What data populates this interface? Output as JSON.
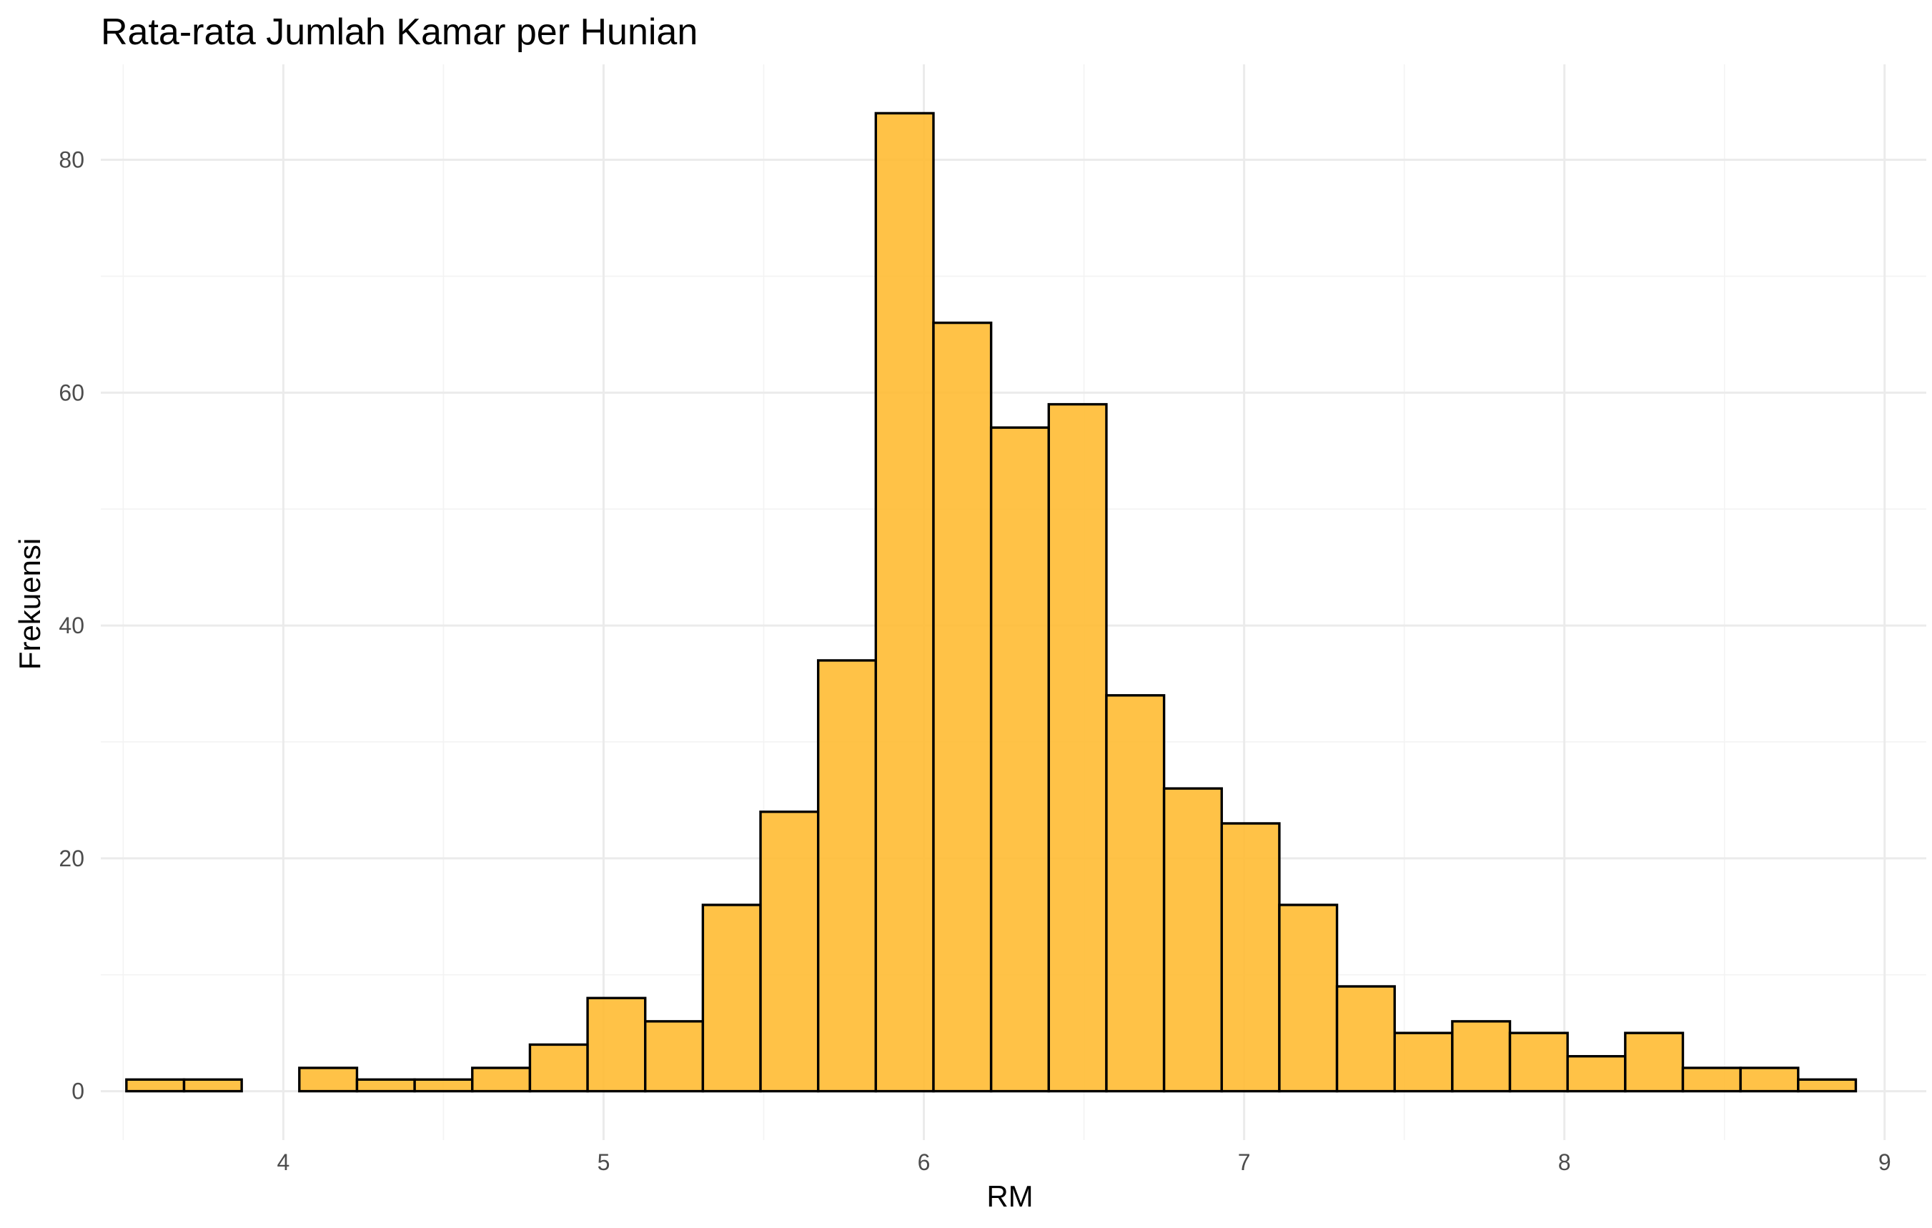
{
  "chart_data": {
    "type": "bar",
    "title": "Rata-rata Jumlah Kamar per Hunian",
    "xlabel": "RM",
    "ylabel": "Frekuensi",
    "bar_fill": "#FFBB33",
    "bar_stroke": "#000000",
    "grid": true,
    "xlim": [
      3.43,
      9.13
    ],
    "ylim": [
      -4.2,
      88.2
    ],
    "x_ticks": [
      4,
      5,
      6,
      7,
      8,
      9
    ],
    "y_ticks": [
      0,
      20,
      40,
      60,
      80
    ],
    "bin_width": 0.18,
    "bin_starts": [
      3.51,
      3.69,
      3.87,
      4.05,
      4.23,
      4.41,
      4.59,
      4.77,
      4.95,
      5.13,
      5.31,
      5.49,
      5.67,
      5.85,
      6.03,
      6.21,
      6.39,
      6.57,
      6.75,
      6.93,
      7.11,
      7.29,
      7.47,
      7.65,
      7.83,
      8.01,
      8.19,
      8.37,
      8.55,
      8.73
    ],
    "values": [
      1,
      1,
      0,
      2,
      1,
      1,
      2,
      4,
      8,
      6,
      16,
      24,
      37,
      84,
      66,
      57,
      59,
      34,
      26,
      23,
      16,
      9,
      5,
      6,
      5,
      3,
      5,
      2,
      2,
      1
    ]
  }
}
